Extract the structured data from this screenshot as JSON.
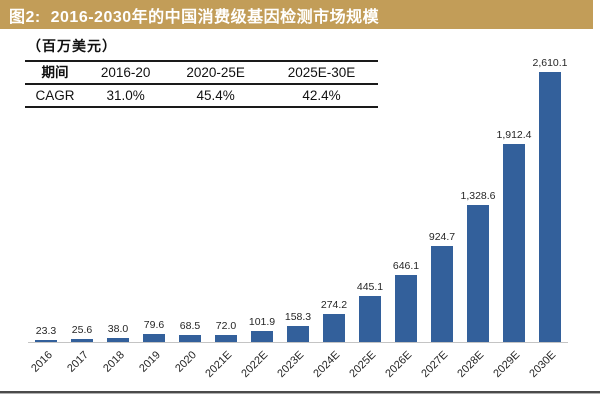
{
  "figure": {
    "title_bar": {
      "text": "图2:  2016-2030年的中国消费级基因检测市场规模",
      "bg_color": "#C29D58",
      "text_color": "#FFFFFF"
    },
    "unit_note": "（百万美元）",
    "cagr_table": {
      "header": [
        "期间",
        "2016-20",
        "2020-25E",
        "2025E-30E"
      ],
      "row": [
        "CAGR",
        "31.0%",
        "45.4%",
        "42.4%"
      ]
    }
  },
  "chart_data": {
    "type": "bar",
    "title": "2016-2030年的中国消费级基因检测市场规模",
    "categories": [
      "2016",
      "2017",
      "2018",
      "2019",
      "2020",
      "2021E",
      "2022E",
      "2023E",
      "2024E",
      "2025E",
      "2026E",
      "2027E",
      "2028E",
      "2029E",
      "2030E"
    ],
    "values": [
      23.3,
      25.6,
      38.0,
      79.6,
      68.5,
      72.0,
      101.9,
      158.3,
      274.2,
      445.1,
      646.1,
      924.7,
      1328.6,
      1912.4,
      2610.1
    ],
    "value_labels": [
      "23.3",
      "25.6",
      "38.0",
      "79.6",
      "68.5",
      "72.0",
      "101.9",
      "158.3",
      "274.2",
      "445.1",
      "646.1",
      "924.7",
      "1,328.6",
      "1,912.4",
      "2,610.1"
    ],
    "xlabel": "",
    "ylabel": "百万美元",
    "ylim": [
      0,
      2700
    ],
    "grid": false,
    "legend": "none",
    "bar_color": "#33609B",
    "axis_line_color": "#C4C4C4",
    "label_color": "#262626"
  }
}
